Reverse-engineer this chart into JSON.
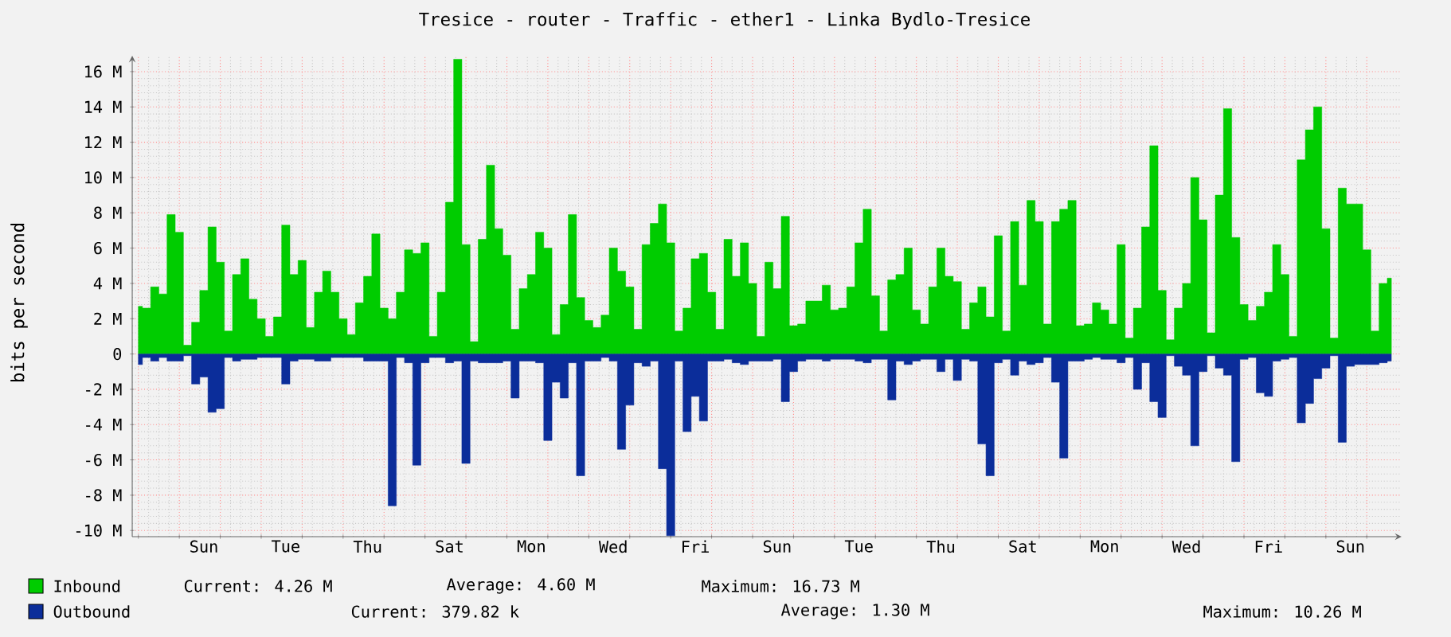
{
  "chart_data": {
    "type": "area",
    "title": "Tresice - router - Traffic - ether1 - Linka Bydlo-Tresice",
    "ylabel": "bits per second",
    "categories": [
      null,
      null,
      null,
      null,
      null,
      null,
      null,
      null,
      "Sun",
      null,
      null,
      null,
      null,
      null,
      null,
      null,
      null,
      null,
      "Tue",
      null,
      null,
      null,
      null,
      null,
      null,
      null,
      null,
      null,
      "Thu",
      null,
      null,
      null,
      null,
      null,
      null,
      null,
      null,
      null,
      "Sat",
      null,
      null,
      null,
      null,
      null,
      null,
      null,
      null,
      null,
      "Mon",
      null,
      null,
      null,
      null,
      null,
      null,
      null,
      null,
      null,
      "Wed",
      null,
      null,
      null,
      null,
      null,
      null,
      null,
      null,
      null,
      "Fri",
      null,
      null,
      null,
      null,
      null,
      null,
      null,
      null,
      null,
      "Sun",
      null,
      null,
      null,
      null,
      null,
      null,
      null,
      null,
      null,
      "Tue",
      null,
      null,
      null,
      null,
      null,
      null,
      null,
      null,
      null,
      "Thu",
      null,
      null,
      null,
      null,
      null,
      null,
      null,
      null,
      null,
      "Sat",
      null,
      null,
      null,
      null,
      null,
      null,
      null,
      null,
      null,
      "Mon",
      null,
      null,
      null,
      null,
      null,
      null,
      null,
      null,
      null,
      "Wed",
      null,
      null,
      null,
      null,
      null,
      null,
      null,
      null,
      null,
      "Fri",
      null,
      null,
      null,
      null,
      null,
      null,
      null,
      null,
      null,
      "Sun",
      null,
      null,
      null,
      null,
      null
    ],
    "ylim": [
      -10.35,
      16.9
    ],
    "yticks": [
      {
        "value": -10,
        "label": "-10 M"
      },
      {
        "value": -8,
        "label": "-8 M"
      },
      {
        "value": -6,
        "label": "-6 M"
      },
      {
        "value": -4,
        "label": "-4 M"
      },
      {
        "value": -2,
        "label": "-2 M"
      },
      0,
      {
        "value": 2,
        "label": "2 M"
      },
      {
        "value": 4,
        "label": "4 M"
      },
      {
        "value": 6,
        "label": "6 M"
      },
      {
        "value": 8,
        "label": "8 M"
      },
      {
        "value": 10,
        "label": "10 M"
      },
      {
        "value": 12,
        "label": "12 M"
      },
      {
        "value": 14,
        "label": "14 M"
      },
      {
        "value": 16,
        "label": "16 M"
      }
    ],
    "grid": true,
    "legend": "bottom",
    "annotations": [
      "Current: 4.26 M",
      "Average: 4.60 M",
      "Maximum: 16.73 M",
      "Current: 379.82 k",
      "Average: 1.30 M",
      "Maximum: 10.26 M"
    ],
    "series": [
      {
        "name": "Inbound",
        "color": "#00cc00",
        "values": [
          2.7,
          2.6,
          3.8,
          3.4,
          7.9,
          6.9,
          0.5,
          1.8,
          3.6,
          7.2,
          5.2,
          1.3,
          4.5,
          5.4,
          3.1,
          2.0,
          1.0,
          2.1,
          7.3,
          4.5,
          5.3,
          1.5,
          3.5,
          4.7,
          3.5,
          2.0,
          1.1,
          2.9,
          4.4,
          6.8,
          2.6,
          2.0,
          3.5,
          5.9,
          5.7,
          6.3,
          1.0,
          3.5,
          8.6,
          16.7,
          6.2,
          0.7,
          6.5,
          10.7,
          7.1,
          5.6,
          1.4,
          3.7,
          4.5,
          6.9,
          6.0,
          1.1,
          2.8,
          7.9,
          3.2,
          1.9,
          1.5,
          2.2,
          6.0,
          4.7,
          3.8,
          1.4,
          6.2,
          7.4,
          8.5,
          6.3,
          1.3,
          2.6,
          5.4,
          5.7,
          3.5,
          1.4,
          6.5,
          4.4,
          6.3,
          4.0,
          1.0,
          5.2,
          3.7,
          7.8,
          1.6,
          1.7,
          3.0,
          3.0,
          3.9,
          2.5,
          2.6,
          3.8,
          6.3,
          8.2,
          3.3,
          1.3,
          4.2,
          4.5,
          6.0,
          2.5,
          1.7,
          3.8,
          6.0,
          4.4,
          4.1,
          1.4,
          2.9,
          3.8,
          2.1,
          6.7,
          1.3,
          7.5,
          3.9,
          8.7,
          7.5,
          1.7,
          7.5,
          8.2,
          8.7,
          1.6,
          1.7,
          2.9,
          2.5,
          1.7,
          6.2,
          0.9,
          2.6,
          7.2,
          11.8,
          3.6,
          0.8,
          2.6,
          4.0,
          10.0,
          7.6,
          1.2,
          9.0,
          13.9,
          6.6,
          2.8,
          1.9,
          2.7,
          3.5,
          6.2,
          4.5,
          1.0,
          11.0,
          12.7,
          14.0,
          7.1,
          0.9,
          9.4,
          8.5,
          8.5,
          5.9,
          1.3,
          4.0,
          4.3
        ]
      },
      {
        "name": "Outbound",
        "color": "#0b2d9a",
        "values": [
          -0.6,
          -0.2,
          -0.4,
          -0.2,
          -0.4,
          -0.4,
          -0.1,
          -1.7,
          -1.3,
          -3.3,
          -3.1,
          -0.2,
          -0.4,
          -0.3,
          -0.3,
          -0.2,
          -0.2,
          -0.2,
          -1.7,
          -0.4,
          -0.3,
          -0.3,
          -0.4,
          -0.4,
          -0.2,
          -0.2,
          -0.2,
          -0.2,
          -0.4,
          -0.4,
          -0.4,
          -8.6,
          -0.2,
          -0.5,
          -6.3,
          -0.5,
          -0.2,
          -0.2,
          -0.5,
          -0.4,
          -6.2,
          -0.4,
          -0.5,
          -0.5,
          -0.5,
          -0.4,
          -2.5,
          -0.4,
          -0.4,
          -0.5,
          -4.9,
          -1.6,
          -2.5,
          -0.5,
          -6.9,
          -0.4,
          -0.4,
          -0.2,
          -0.4,
          -5.4,
          -2.9,
          -0.5,
          -0.7,
          -0.4,
          -6.5,
          -10.3,
          -0.4,
          -4.4,
          -2.4,
          -3.8,
          -0.4,
          -0.4,
          -0.3,
          -0.5,
          -0.6,
          -0.4,
          -0.4,
          -0.4,
          -0.3,
          -2.7,
          -1.0,
          -0.4,
          -0.3,
          -0.3,
          -0.4,
          -0.3,
          -0.3,
          -0.3,
          -0.4,
          -0.5,
          -0.3,
          -0.3,
          -2.6,
          -0.4,
          -0.6,
          -0.4,
          -0.3,
          -0.3,
          -1.0,
          -0.3,
          -1.5,
          -0.3,
          -0.4,
          -5.1,
          -6.9,
          -0.5,
          -0.3,
          -1.2,
          -0.4,
          -0.6,
          -0.5,
          -0.2,
          -1.6,
          -5.9,
          -0.4,
          -0.4,
          -0.3,
          -0.2,
          -0.3,
          -0.3,
          -0.5,
          -0.2,
          -2.0,
          -0.5,
          -2.7,
          -3.6,
          -0.1,
          -0.7,
          -1.2,
          -5.2,
          -1.0,
          -0.1,
          -0.8,
          -1.2,
          -6.1,
          -0.3,
          -0.2,
          -2.2,
          -2.4,
          -0.4,
          -0.3,
          -0.2,
          -3.9,
          -2.8,
          -1.4,
          -0.8,
          -0.1,
          -5.0,
          -0.7,
          -0.6,
          -0.6,
          -0.6,
          -0.5,
          -0.4
        ]
      }
    ]
  }
}
